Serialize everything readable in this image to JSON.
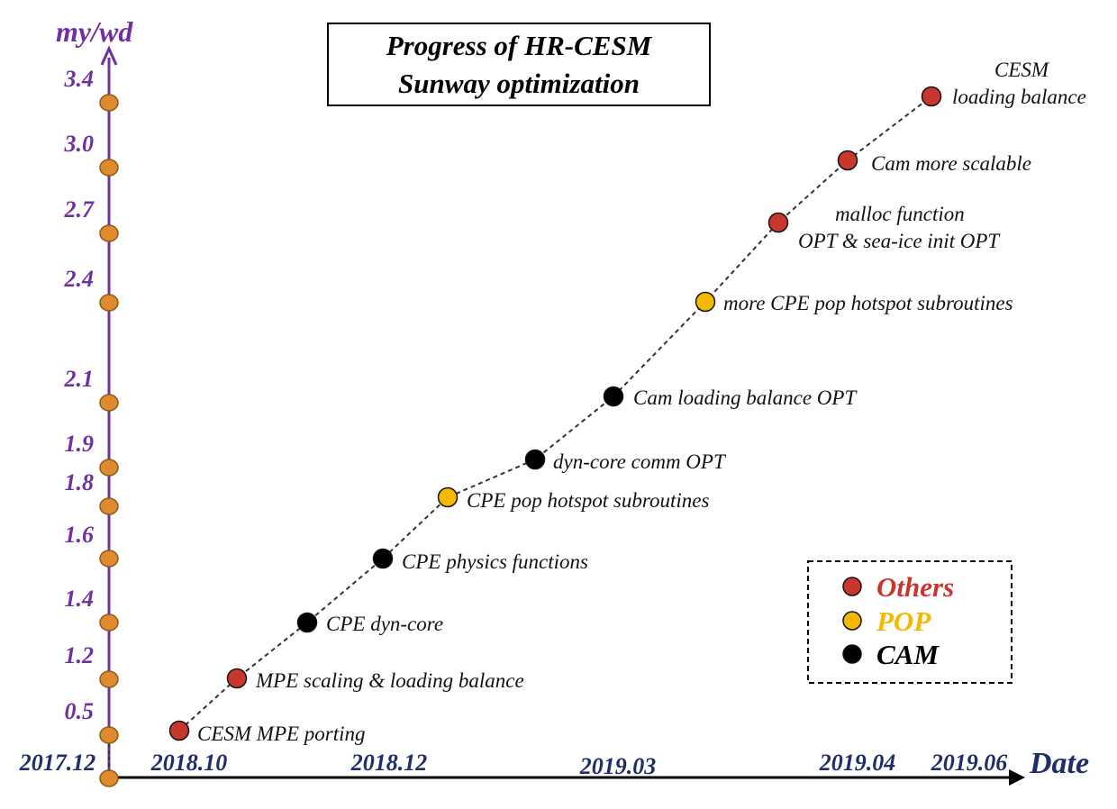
{
  "chart_data": {
    "type": "line",
    "title": [
      "Progress of HR-CESM",
      "Sunway optimization"
    ],
    "ylabel": "my/wd",
    "xlabel": "Date",
    "y_ticks": [
      "0.5",
      "1.2",
      "1.4",
      "1.6",
      "1.8",
      "1.9",
      "2.1",
      "2.4",
      "2.7",
      "3.0",
      "3.4"
    ],
    "x_ticks": [
      "2017.12",
      "2018.10",
      "2018.12",
      "2019.03",
      "2019.04",
      "2019.06"
    ],
    "legend": {
      "position": "bottom-right",
      "entries": [
        {
          "name": "Others",
          "color": "#c8372d"
        },
        {
          "name": "POP",
          "color": "#f5b800"
        },
        {
          "name": "CAM",
          "color": "#000000"
        }
      ]
    },
    "points": [
      {
        "y": 0.5,
        "label": "CESM MPE porting",
        "category": "Others"
      },
      {
        "y": 1.2,
        "label": "MPE scaling & loading balance",
        "category": "Others"
      },
      {
        "y": 1.4,
        "label": "CPE dyn-core",
        "category": "CAM"
      },
      {
        "y": 1.6,
        "label": "CPE physics functions",
        "category": "CAM"
      },
      {
        "y": 1.8,
        "label": "CPE pop hotspot subroutines",
        "category": "POP"
      },
      {
        "y": 1.9,
        "label": "dyn-core comm OPT",
        "category": "CAM"
      },
      {
        "y": 2.1,
        "label": "Cam loading balance OPT",
        "category": "CAM"
      },
      {
        "y": 2.4,
        "label": "more CPE pop hotspot subroutines",
        "category": "POP"
      },
      {
        "y": 2.7,
        "label": [
          "malloc function",
          "OPT & sea-ice init OPT"
        ],
        "category": "Others"
      },
      {
        "y": 3.0,
        "label": "Cam more scalable",
        "category": "Others"
      },
      {
        "y": 3.4,
        "label": [
          "CESM",
          "loading balance"
        ],
        "category": "Others"
      }
    ],
    "colors": {
      "axis": "#7030a0",
      "axis_dot": "#e08a2e",
      "date_text": "#1f2d6b",
      "connector": "#333333"
    }
  }
}
